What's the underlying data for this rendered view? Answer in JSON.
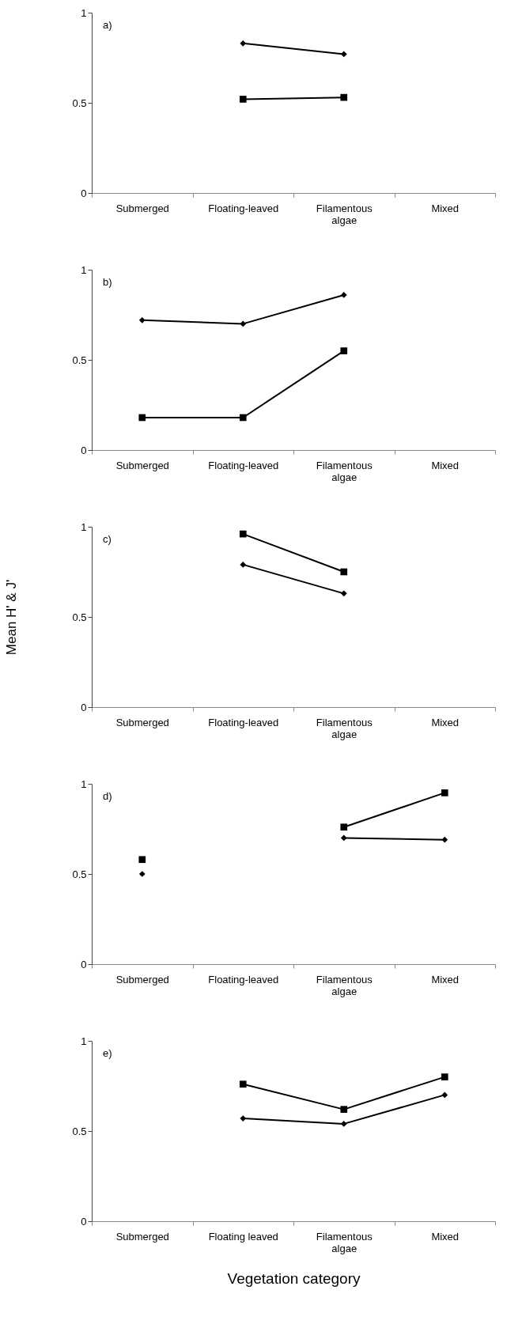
{
  "chart_data": [
    {
      "type": "line",
      "categories": [
        "Submerged",
        "Floating-leaved",
        "Filamentous algae",
        "Mixed"
      ],
      "annotations": [
        "a)"
      ],
      "ylim": [
        0,
        1
      ],
      "yticks": [
        0,
        0.5,
        1
      ],
      "grid": false,
      "legend": false,
      "series": [
        {
          "color": "#000000",
          "marker": "diamond",
          "values": [
            null,
            0.83,
            0.77,
            null
          ]
        },
        {
          "color": "#000000",
          "marker": "square",
          "values": [
            null,
            0.52,
            0.53,
            null
          ]
        }
      ]
    },
    {
      "type": "line",
      "categories": [
        "Submerged",
        "Floating-leaved",
        "Filamentous algae",
        "Mixed"
      ],
      "annotations": [
        "b)"
      ],
      "ylim": [
        0,
        1
      ],
      "yticks": [
        0,
        0.5,
        1
      ],
      "grid": false,
      "legend": false,
      "series": [
        {
          "color": "#000000",
          "marker": "diamond",
          "values": [
            0.72,
            0.7,
            0.86,
            null
          ]
        },
        {
          "color": "#000000",
          "marker": "square",
          "values": [
            0.18,
            0.18,
            0.55,
            null
          ]
        }
      ]
    },
    {
      "type": "line",
      "categories": [
        "Submerged",
        "Floating-leaved",
        "Filamentous algae",
        "Mixed"
      ],
      "annotations": [
        "c)"
      ],
      "ylabel": "Mean H' & J'",
      "ylim": [
        0,
        1
      ],
      "yticks": [
        0,
        0.5,
        1
      ],
      "grid": false,
      "legend": false,
      "series": [
        {
          "color": "#000000",
          "marker": "square",
          "values": [
            null,
            0.96,
            0.75,
            null
          ]
        },
        {
          "color": "#000000",
          "marker": "diamond",
          "values": [
            null,
            0.79,
            0.63,
            null
          ]
        }
      ]
    },
    {
      "type": "line",
      "categories": [
        "Submerged",
        "Floating-leaved",
        "Filamentous algae",
        "Mixed"
      ],
      "annotations": [
        "d)"
      ],
      "ylim": [
        0,
        1
      ],
      "yticks": [
        0,
        0.5,
        1
      ],
      "grid": false,
      "legend": false,
      "series": [
        {
          "color": "#000000",
          "marker": "square",
          "values": [
            0.58,
            null,
            0.76,
            0.95
          ]
        },
        {
          "color": "#000000",
          "marker": "diamond",
          "values": [
            0.5,
            null,
            0.7,
            0.69
          ]
        }
      ]
    },
    {
      "type": "line",
      "categories": [
        "Submerged",
        "Floating leaved",
        "Filamentous algae",
        "Mixed"
      ],
      "annotations": [
        "e)"
      ],
      "xlabel": "Vegetation category",
      "ylim": [
        0,
        1
      ],
      "yticks": [
        0,
        0.5,
        1
      ],
      "grid": false,
      "legend": false,
      "series": [
        {
          "color": "#000000",
          "marker": "square",
          "values": [
            null,
            0.76,
            0.62,
            0.8
          ]
        },
        {
          "color": "#000000",
          "marker": "diamond",
          "values": [
            null,
            0.57,
            0.54,
            0.7
          ]
        }
      ]
    }
  ]
}
